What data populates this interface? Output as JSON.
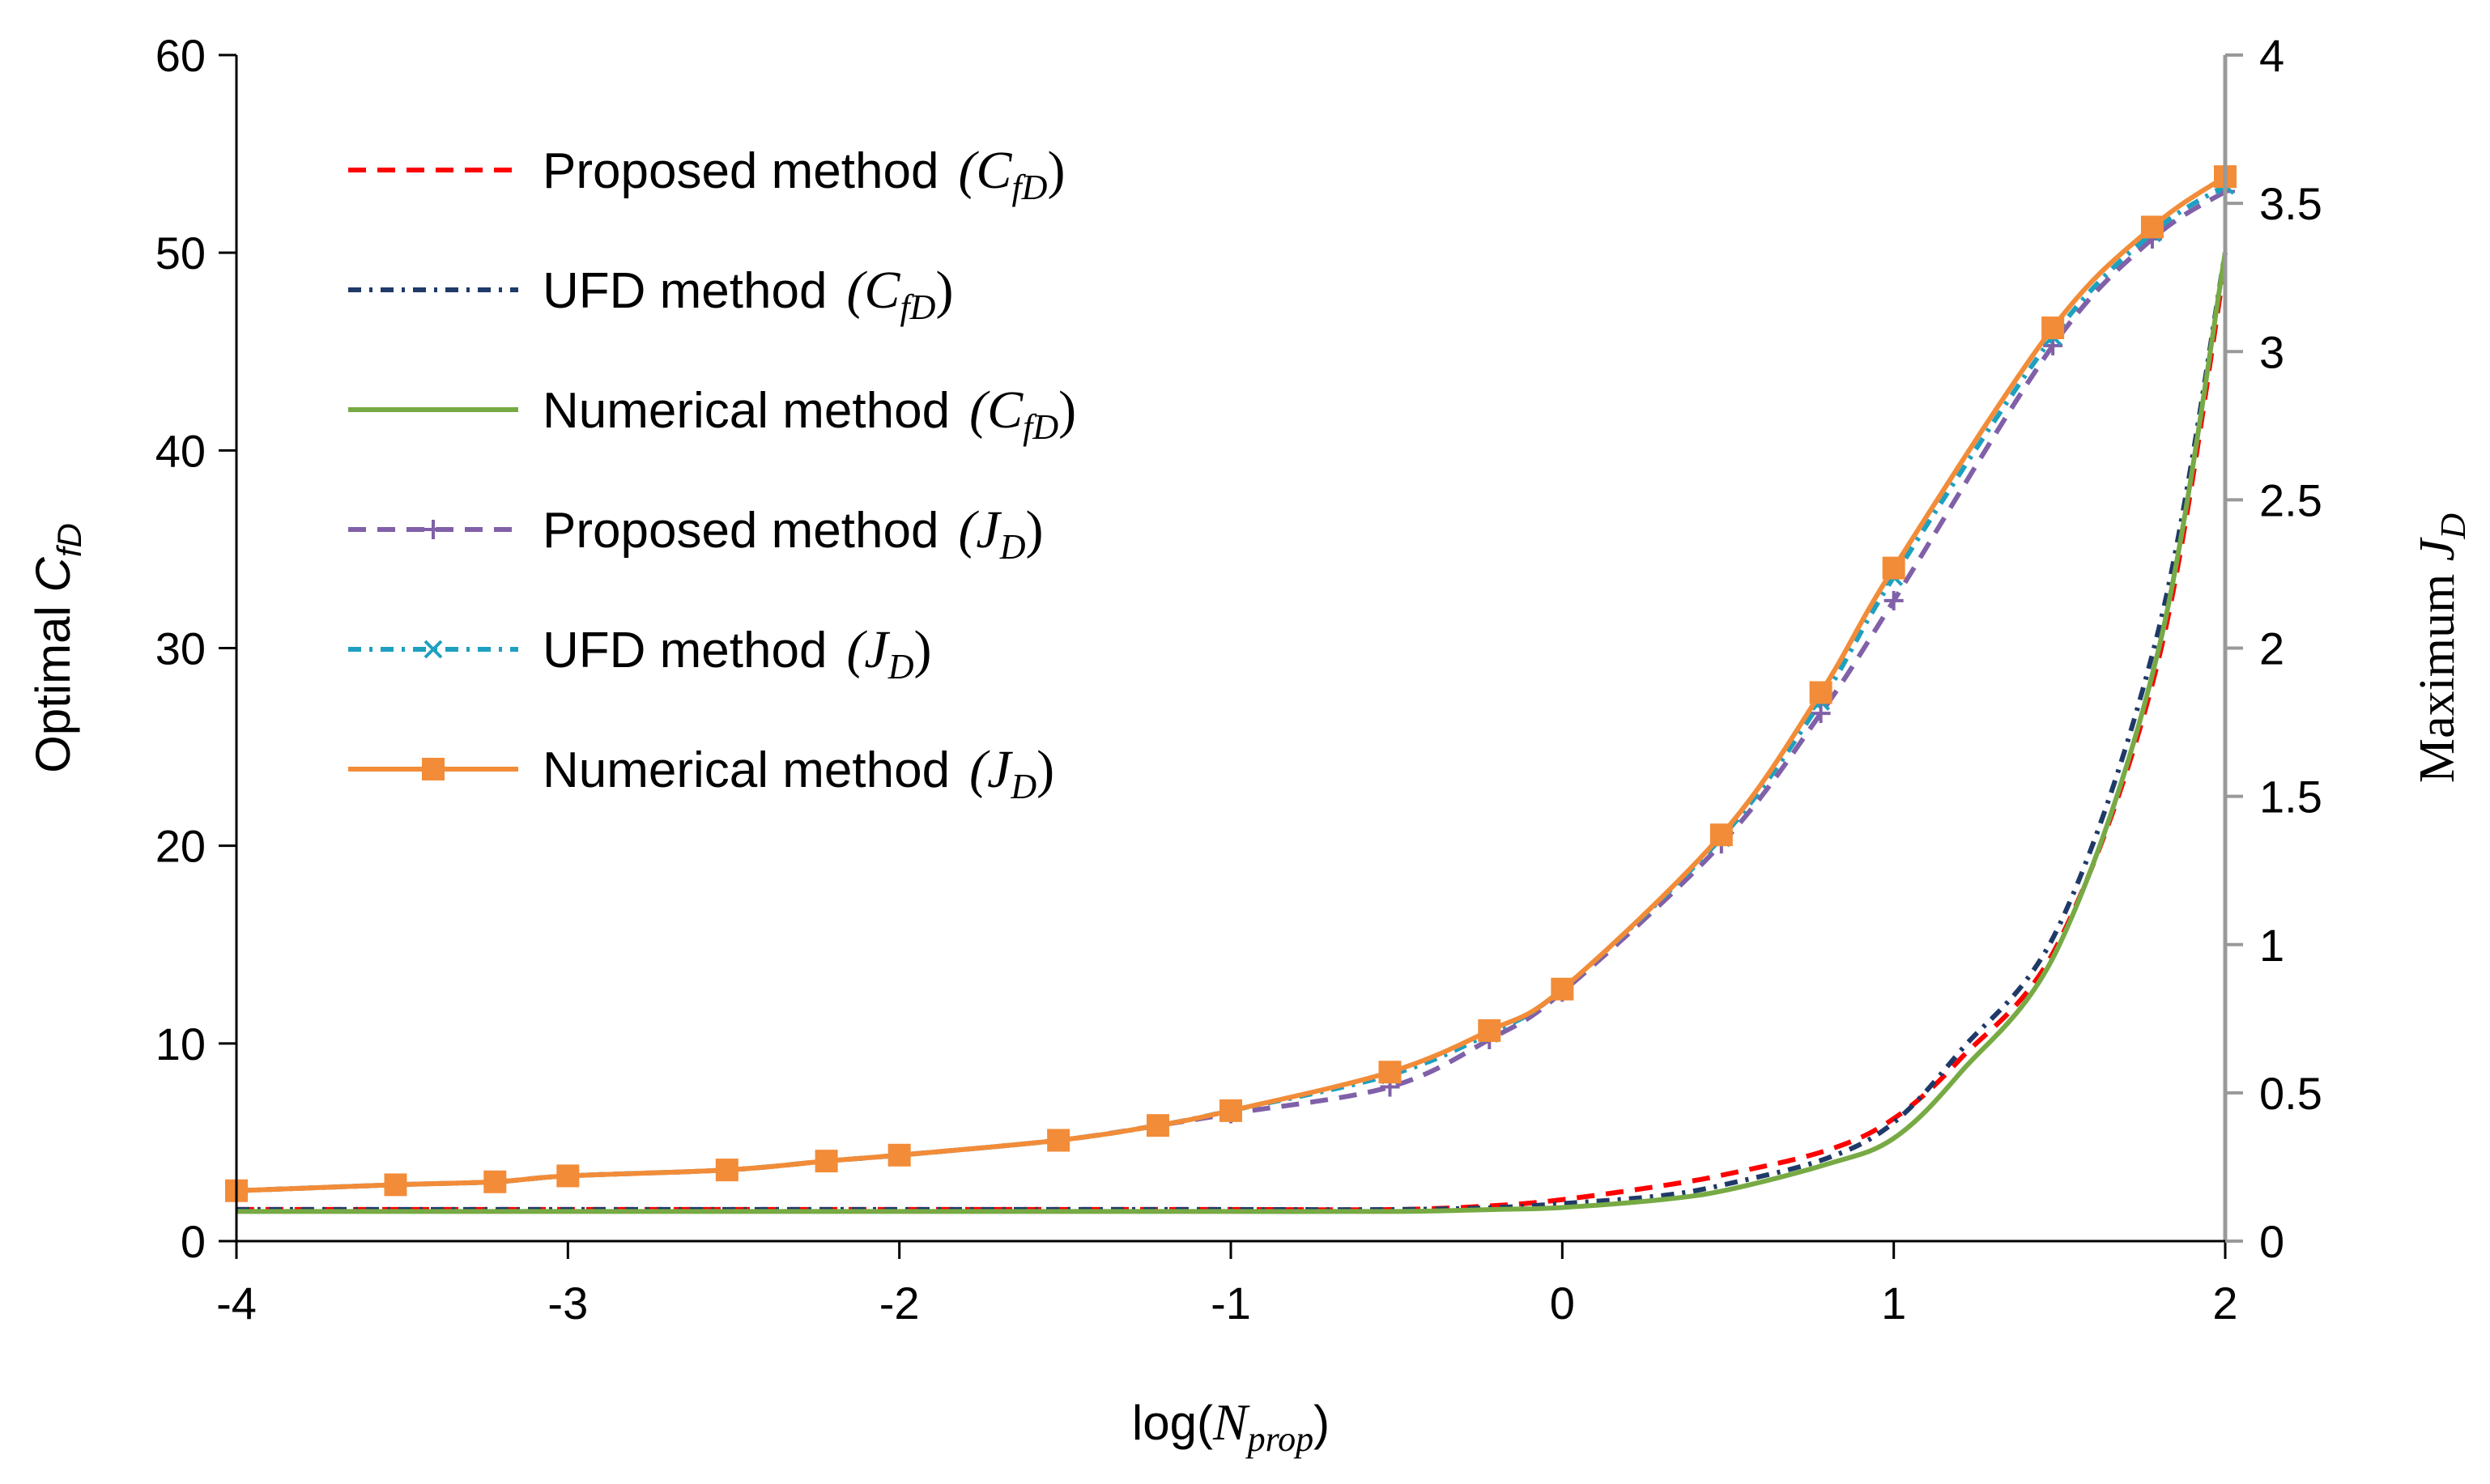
{
  "chart_data": {
    "type": "line",
    "x_axis": {
      "label_prefix": "log(",
      "label_var": "N",
      "label_sub": "prop",
      "label_suffix": ")",
      "range": [
        -4,
        2
      ],
      "ticks": [
        "-4",
        "-3",
        "-2",
        "-1",
        "0",
        "1",
        "2"
      ]
    },
    "y_axis_left": {
      "label_prefix": "Optimal ",
      "label_var": "C",
      "label_sub": "fD",
      "range": [
        0,
        60
      ],
      "ticks": [
        "0",
        "10",
        "20",
        "30",
        "40",
        "50",
        "60"
      ]
    },
    "y_axis_right": {
      "label_prefix": "Maximum ",
      "label_var": "J",
      "label_sub": "D",
      "range": [
        0,
        4
      ],
      "ticks": [
        "0",
        "0.5",
        "1",
        "1.5",
        "2",
        "2.5",
        "3",
        "3.5",
        "4"
      ]
    },
    "series": [
      {
        "id": "proposed-cfd",
        "name": "Proposed method",
        "param_var": "C",
        "param_sub": "fD",
        "axis": "left",
        "color": "#ff0000",
        "dash": "22,14",
        "marker": "none",
        "x": [
          -4,
          -3.5,
          -3,
          -2.5,
          -2,
          -1.5,
          -1,
          -0.5,
          -0.2,
          0,
          0.3,
          0.5,
          0.8,
          1,
          1.2,
          1.5,
          1.8,
          2
        ],
        "y": [
          1.6,
          1.6,
          1.6,
          1.6,
          1.6,
          1.6,
          1.6,
          1.6,
          1.8,
          2.1,
          2.8,
          3.4,
          4.6,
          6.2,
          9.2,
          15.2,
          29.5,
          49.5
        ]
      },
      {
        "id": "ufd-cfd",
        "name": "UFD method",
        "param_var": "C",
        "param_sub": "fD",
        "axis": "left",
        "color": "#1f3a68",
        "dash": "16,10,4,10",
        "marker": "none",
        "x": [
          -4,
          -3.5,
          -3,
          -2.5,
          -2,
          -1.5,
          -1,
          -0.5,
          -0.2,
          0,
          0.3,
          0.5,
          0.8,
          1,
          1.2,
          1.5,
          1.8,
          2
        ],
        "y": [
          1.6,
          1.6,
          1.6,
          1.6,
          1.6,
          1.6,
          1.6,
          1.6,
          1.7,
          1.9,
          2.3,
          2.9,
          4.2,
          6.0,
          9.6,
          16.0,
          31.0,
          50.0
        ]
      },
      {
        "id": "numerical-cfd",
        "name": "Numerical method",
        "param_var": "C",
        "param_sub": "fD",
        "axis": "left",
        "color": "#77aa44",
        "dash": "",
        "marker": "none",
        "x": [
          -4,
          -3.5,
          -3,
          -2.5,
          -2,
          -1.5,
          -1,
          -0.5,
          -0.2,
          0,
          0.3,
          0.5,
          0.8,
          1,
          1.2,
          1.5,
          1.8,
          2
        ],
        "y": [
          1.5,
          1.5,
          1.5,
          1.5,
          1.5,
          1.5,
          1.5,
          1.5,
          1.6,
          1.7,
          2.1,
          2.6,
          3.9,
          5.2,
          8.5,
          15.0,
          30.0,
          50.0
        ]
      },
      {
        "id": "proposed-jd",
        "name": "Proposed method",
        "param_var": "J",
        "param_sub": "D",
        "axis": "right",
        "color": "#8060a8",
        "dash": "22,14",
        "marker": "plus",
        "x": [
          -4,
          -3.52,
          -3.22,
          -3,
          -2.52,
          -2.22,
          -2,
          -1.52,
          -1.22,
          -1,
          -0.52,
          -0.22,
          0,
          0.48,
          0.78,
          1,
          1.48,
          1.78,
          2
        ],
        "y": [
          0.17,
          0.19,
          0.2,
          0.22,
          0.24,
          0.27,
          0.29,
          0.34,
          0.39,
          0.43,
          0.52,
          0.68,
          0.84,
          1.34,
          1.78,
          2.16,
          3.02,
          3.38,
          3.54
        ]
      },
      {
        "id": "ufd-jd",
        "name": "UFD method",
        "param_var": "J",
        "param_sub": "D",
        "axis": "right",
        "color": "#1ea0c0",
        "dash": "16,10,4,10",
        "marker": "cross",
        "x": [
          -4,
          -3.52,
          -3.22,
          -3,
          -2.52,
          -2.22,
          -2,
          -1.52,
          -1.22,
          -1,
          -0.52,
          -0.22,
          0,
          0.48,
          0.78,
          1,
          1.48,
          1.78,
          2
        ],
        "y": [
          0.17,
          0.19,
          0.2,
          0.22,
          0.24,
          0.27,
          0.29,
          0.34,
          0.39,
          0.44,
          0.56,
          0.7,
          0.85,
          1.36,
          1.82,
          2.24,
          3.05,
          3.4,
          3.56
        ]
      },
      {
        "id": "numerical-jd",
        "name": "Numerical method",
        "param_var": "J",
        "param_sub": "D",
        "axis": "right",
        "color": "#f28c38",
        "dash": "",
        "marker": "square",
        "x": [
          -4,
          -3.52,
          -3.22,
          -3,
          -2.52,
          -2.22,
          -2,
          -1.52,
          -1.22,
          -1,
          -0.52,
          -0.22,
          0,
          0.48,
          0.78,
          1,
          1.48,
          1.78,
          2
        ],
        "y": [
          0.17,
          0.19,
          0.2,
          0.22,
          0.24,
          0.27,
          0.29,
          0.34,
          0.39,
          0.44,
          0.57,
          0.71,
          0.85,
          1.37,
          1.85,
          2.27,
          3.08,
          3.42,
          3.59
        ]
      }
    ]
  }
}
